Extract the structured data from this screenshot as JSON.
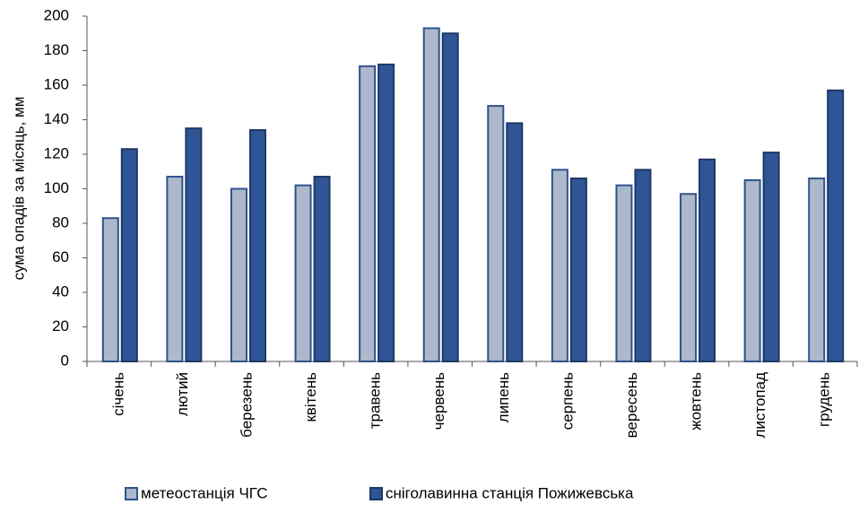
{
  "chart_data": {
    "type": "bar",
    "y_label": "сума опадів за місяць, мм",
    "categories": [
      "січень",
      "лютий",
      "березень",
      "квітень",
      "травень",
      "червень",
      "липень",
      "серпень",
      "вересень",
      "жовтень",
      "листопад",
      "грудень"
    ],
    "series": [
      {
        "name": "метеостанція ЧГС",
        "color": "#adb9ca",
        "values": [
          83,
          107,
          100,
          102,
          171,
          193,
          148,
          111,
          102,
          97,
          105,
          106
        ]
      },
      {
        "name": "сніголавинна станція Пожижевська",
        "color": "#2f5597",
        "values": [
          123,
          135,
          134,
          107,
          172,
          190,
          138,
          106,
          111,
          117,
          121,
          157
        ]
      }
    ],
    "ylim": [
      0,
      200
    ],
    "yticks": [
      0,
      20,
      40,
      60,
      80,
      100,
      120,
      140,
      160,
      180,
      200
    ],
    "legend": "bottom"
  }
}
